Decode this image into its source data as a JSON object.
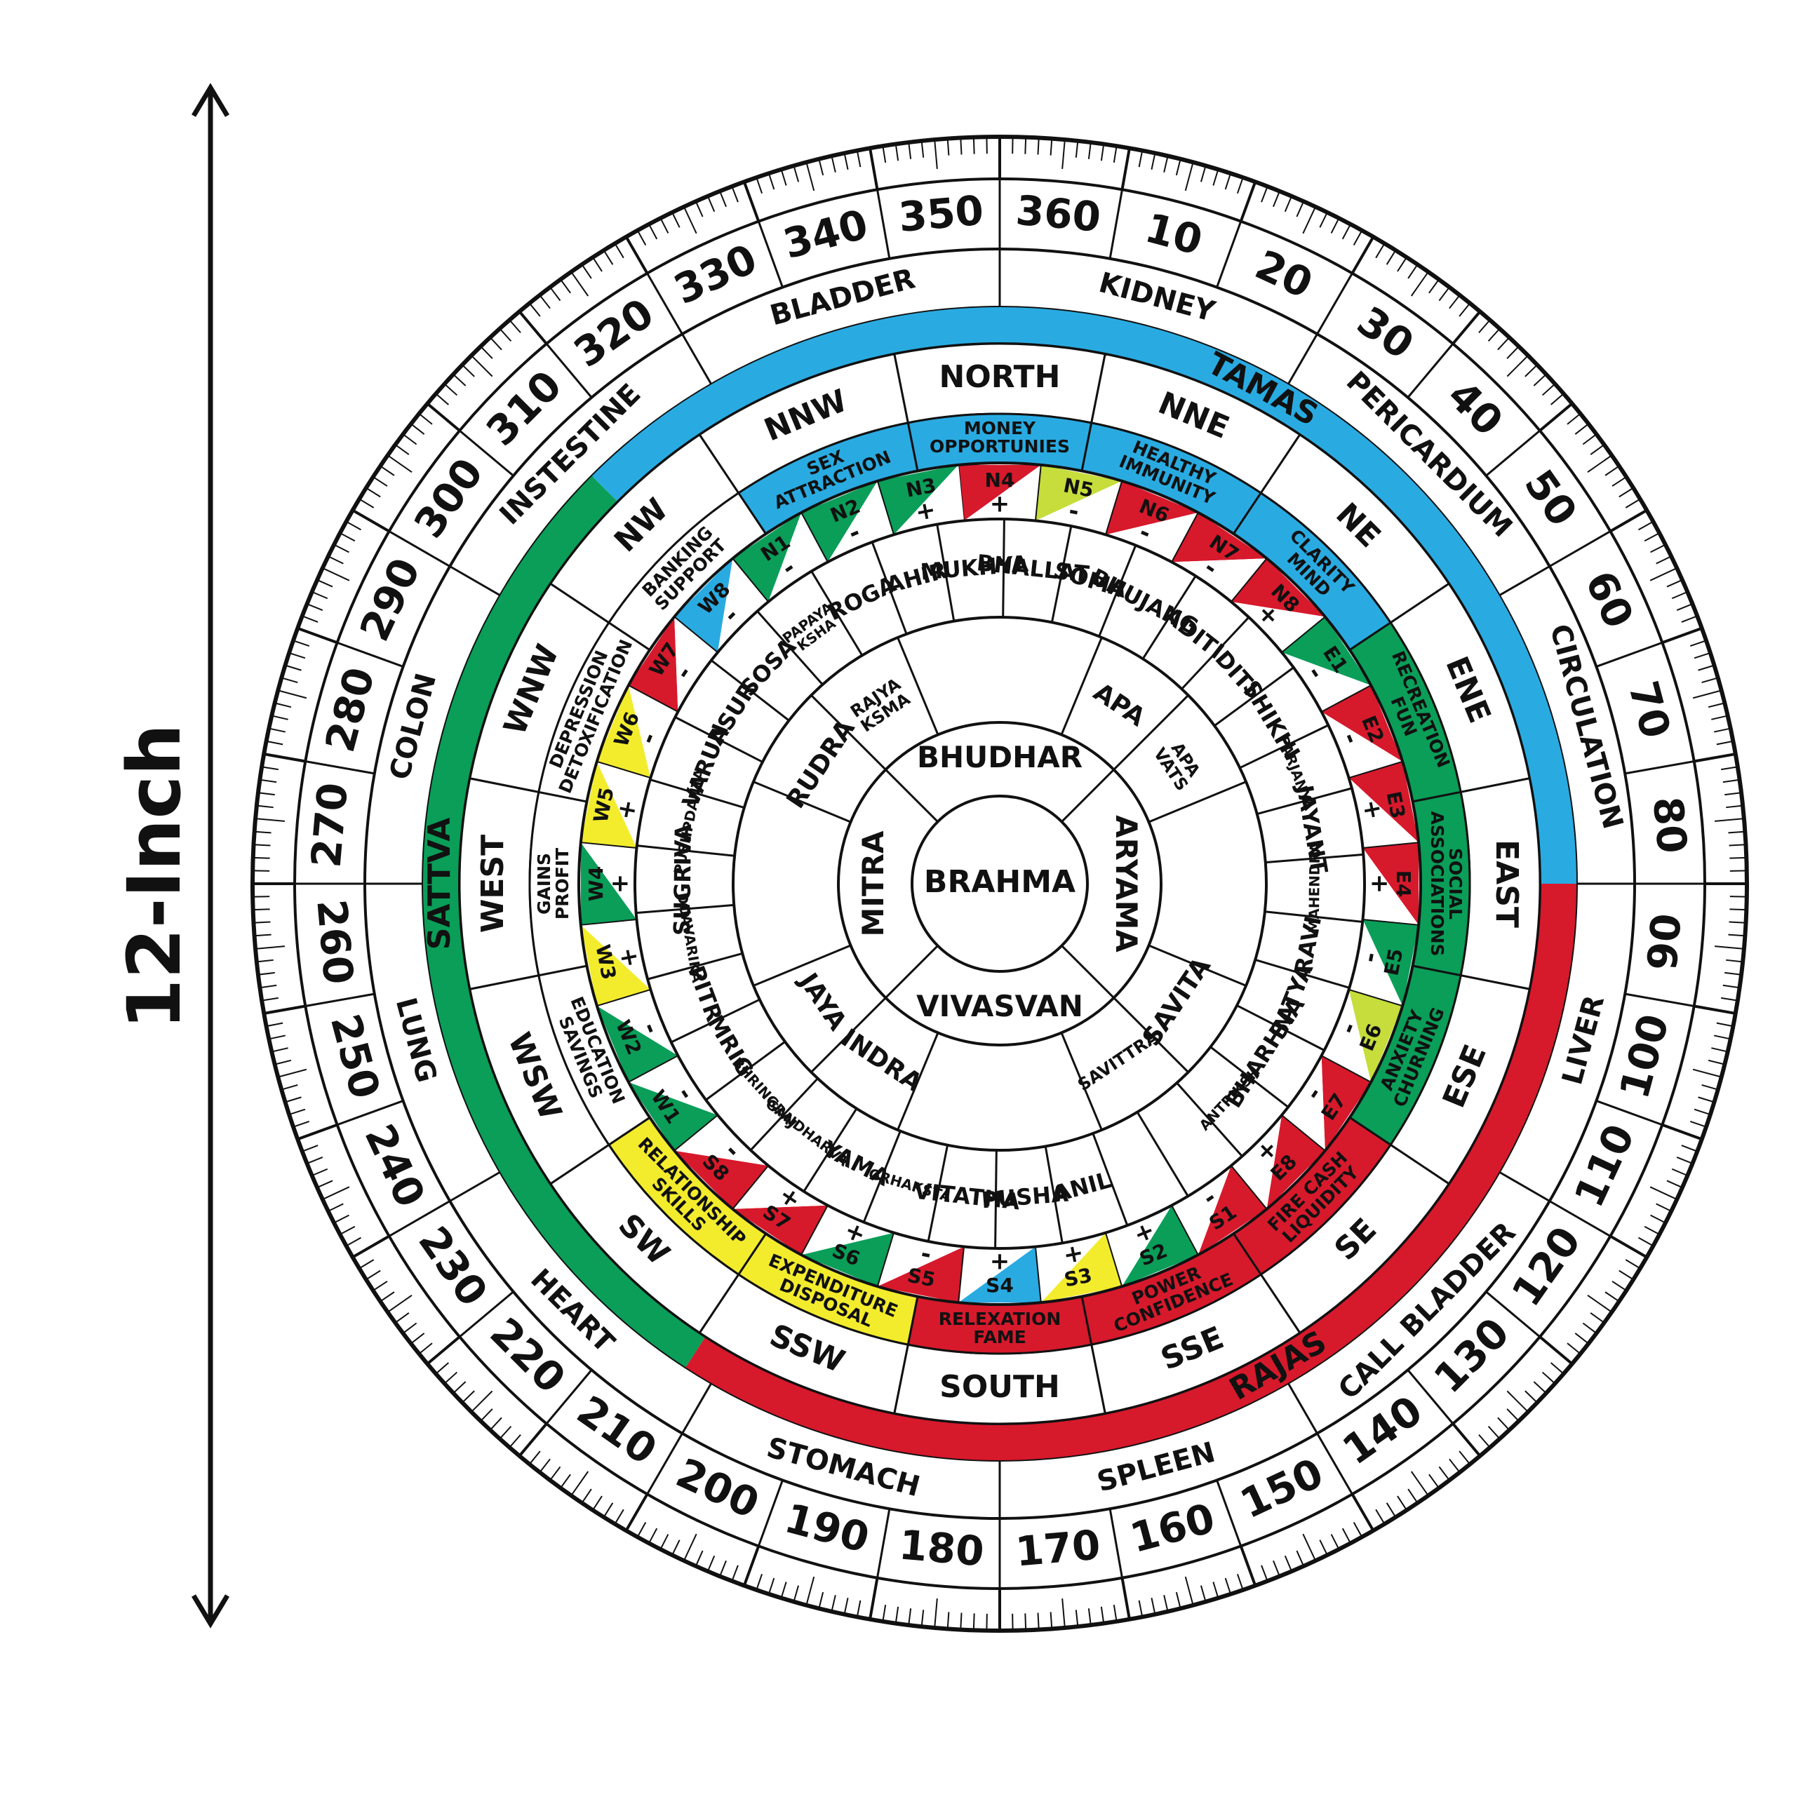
{
  "size_label": "12-Inch",
  "center_label": "BRAHMA",
  "colors": {
    "tamas": "#29abe2",
    "rajas": "#d7192c",
    "sattva": "#0a9e59",
    "yellow": "#f3ec2d",
    "lime": "#c6dd3b",
    "ink": "#111111",
    "brahma_text": "#d7192c"
  },
  "degree_labels": [
    "360",
    "10",
    "20",
    "30",
    "40",
    "50",
    "60",
    "70",
    "80",
    "90",
    "100",
    "110",
    "120",
    "130",
    "140",
    "150",
    "160",
    "170",
    "180",
    "190",
    "200",
    "210",
    "220",
    "230",
    "240",
    "250",
    "260",
    "270",
    "280",
    "290",
    "300",
    "310",
    "320",
    "330",
    "340",
    "350"
  ],
  "organs": [
    "KIDNEY",
    "PERICARDIUM",
    "CIRCULATION",
    "LIVER",
    "CALL BLADDER",
    "SPLEEN",
    "STOMACH",
    "HEART",
    "LUNG",
    "COLON",
    "INSTESTINE",
    "BLADDER"
  ],
  "gunas": {
    "tamas": "TAMAS",
    "rajas": "RAJAS",
    "sattva": "SATTVA"
  },
  "zones": [
    {
      "direction": "NORTH",
      "theme": "MONEY OPPORTUNIES",
      "color": "tamas"
    },
    {
      "direction": "NNE",
      "theme": "HEALTHY IMMUNITY",
      "color": "tamas"
    },
    {
      "direction": "NE",
      "theme": "CLARITY MIND",
      "color": "tamas"
    },
    {
      "direction": "ENE",
      "theme": "RECREATION FUN",
      "color": "sattva"
    },
    {
      "direction": "EAST",
      "theme": "SOCIAL ASSOCIATIONS",
      "color": "sattva"
    },
    {
      "direction": "ESE",
      "theme": "ANXIETY CHURNING",
      "color": "sattva"
    },
    {
      "direction": "SE",
      "theme": "FIRE CASH LIQUIDITY",
      "color": "rajas"
    },
    {
      "direction": "SSE",
      "theme": "POWER CONFIDENCE",
      "color": "rajas"
    },
    {
      "direction": "SOUTH",
      "theme": "RELEXATION FAME",
      "color": "rajas"
    },
    {
      "direction": "SSW",
      "theme": "EXPENDITURE DISPOSAL",
      "color": "yellow"
    },
    {
      "direction": "SW",
      "theme": "RELATIONSHIP SKILLS",
      "color": "yellow"
    },
    {
      "direction": "WSW",
      "theme": "EDUCATION SAVINGS",
      "color": "white"
    },
    {
      "direction": "WEST",
      "theme": "GAINS PROFIT",
      "color": "white"
    },
    {
      "direction": "WNW",
      "theme": "DEPRESSION DETOXIFICATION",
      "color": "white"
    },
    {
      "direction": "NW",
      "theme": "BANKING SUPPORT",
      "color": "white"
    },
    {
      "direction": "NNW",
      "theme": "SEX ATTRACTION",
      "color": "tamas"
    }
  ],
  "padas": [
    {
      "code": "N4",
      "sign": "+",
      "color": "rajas"
    },
    {
      "code": "N5",
      "sign": "-",
      "color": "lime"
    },
    {
      "code": "N6",
      "sign": "-",
      "color": "rajas"
    },
    {
      "code": "N7",
      "sign": "-",
      "color": "rajas"
    },
    {
      "code": "N8",
      "sign": "+",
      "color": "rajas"
    },
    {
      "code": "E1",
      "sign": "-",
      "color": "sattva"
    },
    {
      "code": "E2",
      "sign": "-",
      "color": "rajas"
    },
    {
      "code": "E3",
      "sign": "+",
      "color": "rajas"
    },
    {
      "code": "E4",
      "sign": "+",
      "color": "rajas"
    },
    {
      "code": "E5",
      "sign": "-",
      "color": "sattva"
    },
    {
      "code": "E6",
      "sign": "-",
      "color": "lime"
    },
    {
      "code": "E7",
      "sign": "-",
      "color": "rajas"
    },
    {
      "code": "E8",
      "sign": "+",
      "color": "rajas"
    },
    {
      "code": "S1",
      "sign": "-",
      "color": "rajas"
    },
    {
      "code": "S2",
      "sign": "+",
      "color": "sattva"
    },
    {
      "code": "S3",
      "sign": "+",
      "color": "yellow"
    },
    {
      "code": "S4",
      "sign": "+",
      "color": "tamas"
    },
    {
      "code": "S5",
      "sign": "-",
      "color": "rajas"
    },
    {
      "code": "S6",
      "sign": "+",
      "color": "sattva"
    },
    {
      "code": "S7",
      "sign": "+",
      "color": "rajas"
    },
    {
      "code": "S8",
      "sign": "-",
      "color": "rajas"
    },
    {
      "code": "W1",
      "sign": "-",
      "color": "sattva"
    },
    {
      "code": "W2",
      "sign": "-",
      "color": "sattva"
    },
    {
      "code": "W3",
      "sign": "+",
      "color": "yellow"
    },
    {
      "code": "W4",
      "sign": "+",
      "color": "sattva"
    },
    {
      "code": "W5",
      "sign": "+",
      "color": "yellow"
    },
    {
      "code": "W6",
      "sign": "-",
      "color": "yellow"
    },
    {
      "code": "W7",
      "sign": "-",
      "color": "rajas"
    },
    {
      "code": "W8",
      "sign": "-",
      "color": "tamas"
    },
    {
      "code": "N1",
      "sign": "-",
      "color": "sattva"
    },
    {
      "code": "N2",
      "sign": "-",
      "color": "sattva"
    },
    {
      "code": "N3",
      "sign": "+",
      "color": "sattva"
    }
  ],
  "outer_devtas": [
    "BHALLAT",
    "SOMA",
    "BHUJANG",
    "ADITI",
    "DITI",
    "SHIKHI",
    "PARJANYA",
    "JAYANT",
    "MAHENDRA",
    "RAVI",
    "SATYA",
    "BHARHNA",
    "ANTRIKSH",
    "",
    "",
    "ANIL",
    "PUSHA",
    "VITATHA",
    "GRHAKSTA",
    "YAMA",
    "GANDHARVA",
    "BHRINGRAJ",
    "MRIG",
    "PITR",
    "DUAVARIKA",
    "SUGRIVA",
    "PUSHPDANTA",
    "VARUN",
    "ASUR",
    "SOSA",
    "PAPAYA KSHA",
    "ROGA",
    "AHIR",
    "MUKHYA"
  ],
  "middle_devtas": [
    {
      "name": "APA",
      "start": 22.5,
      "end": 45
    },
    {
      "name": "APA VATS",
      "start": 45,
      "end": 67.5
    },
    {
      "name": "SAVITA",
      "start": 112.5,
      "end": 135
    },
    {
      "name": "SAVITTRA",
      "start": 135,
      "end": 157.5
    },
    {
      "name": "INDRA",
      "start": 202.5,
      "end": 225
    },
    {
      "name": "JAYA",
      "start": 225,
      "end": 247.5
    },
    {
      "name": "RUDRA",
      "start": 292.5,
      "end": 315
    },
    {
      "name": "RAJYA KSMA",
      "start": 315,
      "end": 337.5
    }
  ],
  "inner_devtas": [
    {
      "name": "BHUDHAR",
      "angle": 0
    },
    {
      "name": "ARYAMA",
      "angle": 90
    },
    {
      "name": "VIVASVAN",
      "angle": 180
    },
    {
      "name": "MITRA",
      "angle": 270
    }
  ]
}
